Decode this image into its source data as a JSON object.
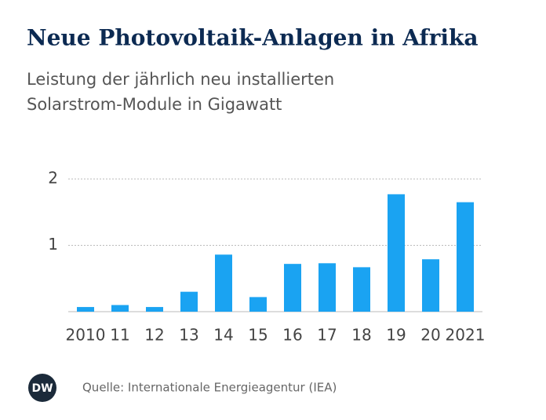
{
  "chart_data": {
    "type": "bar",
    "title": "Neue Photovoltaik-Anlagen in Afrika",
    "subtitle": [
      "Leistung der jährlich neu installierten",
      "Solarstrom-Module in Gigawatt"
    ],
    "categories": [
      "2010",
      "11",
      "12",
      "13",
      "14",
      "15",
      "16",
      "17",
      "18",
      "19",
      "20",
      "2021"
    ],
    "values": [
      0.07,
      0.1,
      0.07,
      0.3,
      0.86,
      0.22,
      0.72,
      0.73,
      0.67,
      1.77,
      0.79,
      1.65
    ],
    "color": "#1aa3f2",
    "ylim": [
      0,
      2
    ],
    "yticks": [
      1,
      2
    ],
    "grid": true,
    "source": "Quelle: Internationale Energieagentur (IEA)",
    "logo": "DW"
  }
}
